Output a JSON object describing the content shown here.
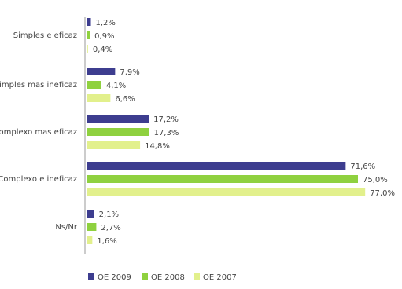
{
  "chart_data": {
    "type": "hbar",
    "categories": [
      "Simples e eficaz",
      "Simples mas ineficaz",
      "Complexo mas eficaz",
      "Complexo e ineficaz",
      "Ns/Nr"
    ],
    "series": [
      {
        "name": "OE 2009",
        "color": "#3d3d8f",
        "values": [
          1.2,
          7.9,
          17.2,
          71.6,
          2.1
        ],
        "value_labels": [
          "1,2%",
          "7,9%",
          "17,2%",
          "71,6%",
          "2,1%"
        ]
      },
      {
        "name": "OE 2008",
        "color": "#8fd13f",
        "values": [
          0.9,
          4.1,
          17.3,
          75.0,
          2.7
        ],
        "value_labels": [
          "0,9%",
          "4,1%",
          "17,3%",
          "75,0%",
          "2,7%"
        ]
      },
      {
        "name": "OE 2007",
        "color": "#e2f08c",
        "values": [
          0.4,
          6.6,
          14.8,
          77.0,
          1.6
        ],
        "value_labels": [
          "0,4%",
          "6,6%",
          "14,8%",
          "77,0%",
          "1,6%"
        ]
      }
    ],
    "legend": "bottom"
  }
}
